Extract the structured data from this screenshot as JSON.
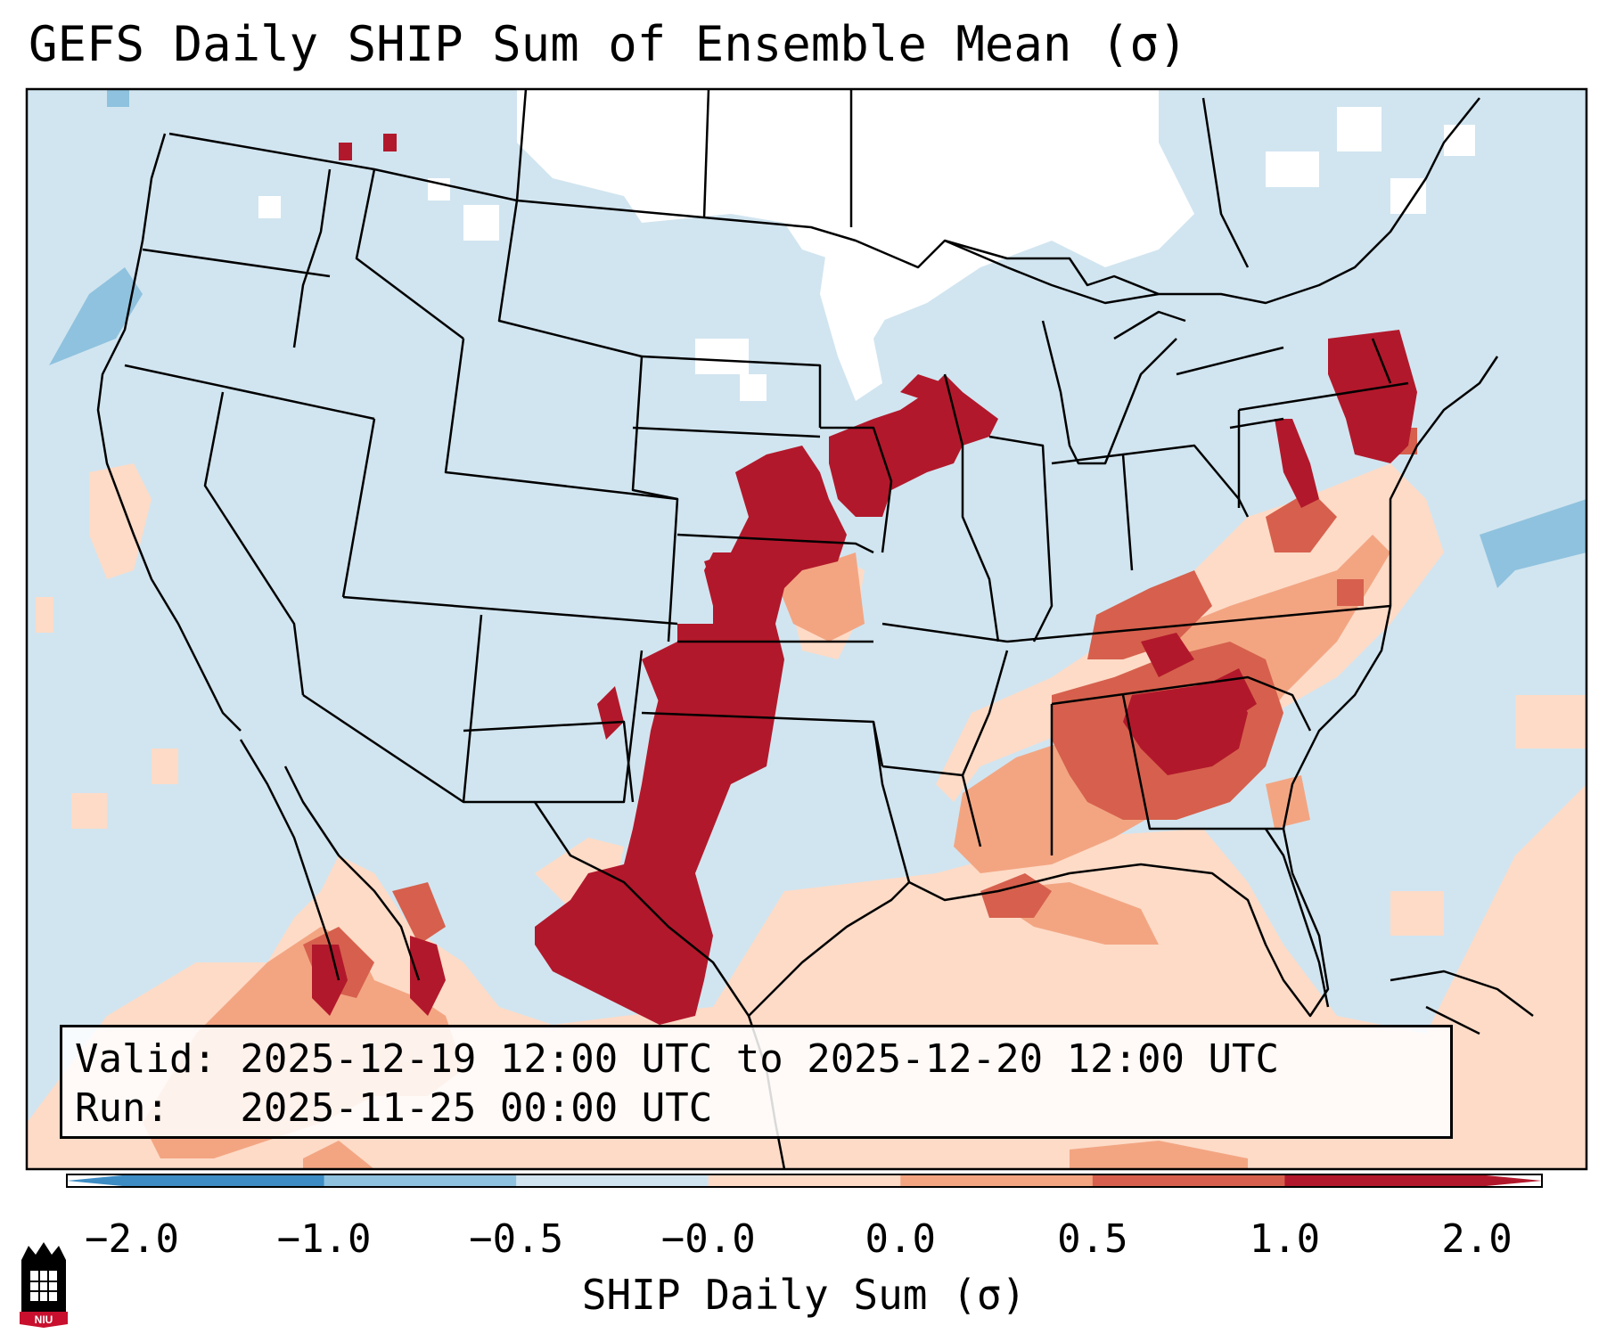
{
  "title": "GEFS Daily SHIP Sum of Ensemble Mean (σ)",
  "info": {
    "valid_line": "Valid: 2025-12-19 12:00 UTC to 2025-12-20 12:00 UTC",
    "run_line": "Run:   2025-11-25 00:00 UTC"
  },
  "colorbar": {
    "label": "SHIP Daily Sum (σ)",
    "ticks": [
      "−2.0",
      "−1.0",
      "−0.5",
      "−0.0",
      "0.0",
      "0.5",
      "1.0",
      "2.0"
    ],
    "colors": [
      "#3d8cc4",
      "#8fc2de",
      "#d1e5f0",
      "#f7f7f7",
      "#fddbc7",
      "#f3a582",
      "#d6604d",
      "#b2182b"
    ]
  },
  "logo": {
    "text": "NIU",
    "colors": {
      "red": "#c8102e",
      "black": "#000000"
    }
  },
  "map_colors": {
    "background_light_blue": "#d1e5f0",
    "mid_blue": "#8fc2de",
    "white": "#ffffff",
    "light_salmon": "#fddbc7",
    "salmon": "#f3a582",
    "coral": "#d6604d",
    "dark_red": "#b2182b"
  }
}
